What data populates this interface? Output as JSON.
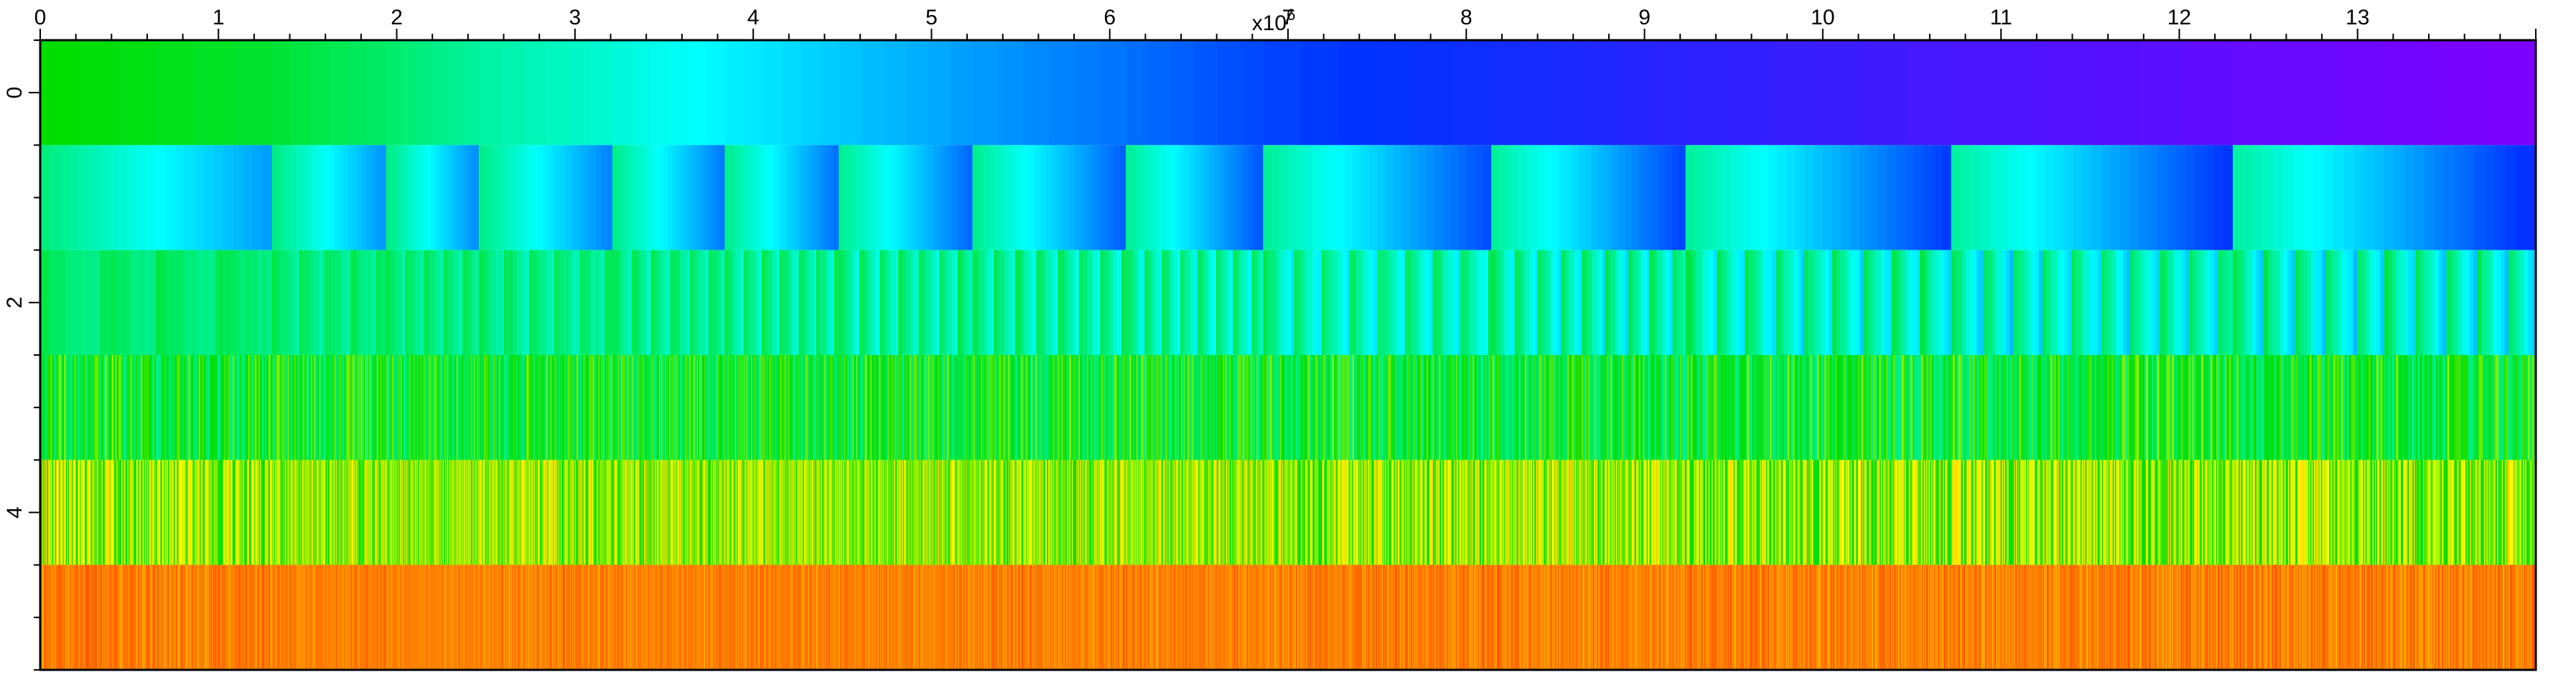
{
  "chart_data": {
    "type": "heatmap",
    "title": "",
    "xlabel": "",
    "ylabel": "",
    "x_multiplier_label": "x10",
    "x_multiplier_exponent": "6",
    "xlim": [
      0,
      14000000
    ],
    "ylim": [
      5.5,
      -0.5
    ],
    "x_ticks": {
      "values": [
        0,
        1000000,
        2000000,
        3000000,
        4000000,
        5000000,
        6000000,
        7000000,
        8000000,
        9000000,
        10000000,
        11000000,
        12000000,
        13000000
      ],
      "labels": [
        "0",
        "1",
        "2",
        "3",
        "4",
        "5",
        "6",
        "7",
        "8",
        "9",
        "10",
        "11",
        "12",
        "13"
      ]
    },
    "y_ticks": {
      "values": [
        0,
        2,
        4
      ],
      "labels": [
        "0",
        "2",
        "4"
      ]
    },
    "rows": [
      0,
      1,
      2,
      3,
      4,
      5
    ],
    "segment_boundaries": [
      0,
      1300000,
      1940000,
      2460000,
      3210000,
      3840000,
      4480000,
      5230000,
      6090000,
      6860000,
      8140000,
      9230000,
      10720000,
      12300000,
      14000000
    ],
    "colormap": [
      "#00dd00",
      "#00ffff",
      "#0033ff",
      "#8000ff"
    ],
    "row_value_ranges": [
      {
        "row": 0,
        "from": 0.0,
        "to": 1.0
      },
      {
        "row": 1,
        "from": 0.05,
        "to": 0.7
      },
      {
        "row": 2,
        "from": 0.0,
        "to": 0.45
      },
      {
        "row": 3,
        "from": -0.1,
        "to": 0.2
      },
      {
        "row": 4,
        "from": -0.25,
        "to": 0.05
      },
      {
        "row": 5,
        "from": -0.45,
        "to": -0.3
      }
    ],
    "grid": false,
    "legend": "none"
  }
}
